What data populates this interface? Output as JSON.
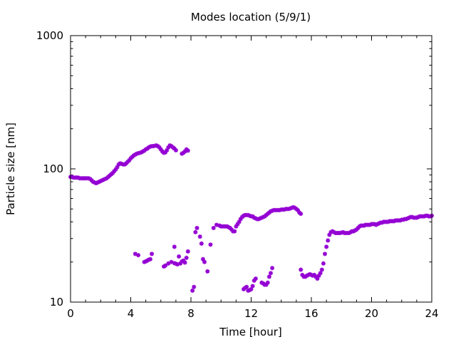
{
  "chart_data": {
    "type": "scatter",
    "title": "Modes location (5/9/1)",
    "xlabel": "Time [hour]",
    "ylabel": "Particle size [nm]",
    "xlim": [
      0,
      24
    ],
    "ylim": [
      10,
      1000
    ],
    "yscale": "log",
    "grid": false,
    "legend": "none",
    "marker": "star",
    "color": "#9400d3",
    "xticks": [
      "0",
      "4",
      "8",
      "12",
      "16",
      "20",
      "24"
    ],
    "yticks": [
      "10",
      "100",
      "1000"
    ],
    "series": [
      {
        "x": [
          0.0,
          0.1,
          0.2,
          0.3,
          0.4,
          0.5,
          0.6,
          0.7,
          0.8,
          0.9,
          1.0,
          1.1,
          1.2,
          1.3,
          1.4,
          1.5,
          1.6,
          1.7,
          1.8,
          1.9,
          2.0,
          2.1,
          2.2,
          2.3,
          2.4,
          2.5,
          2.6,
          2.7,
          2.8,
          2.9,
          3.0,
          3.1,
          3.2,
          3.3,
          3.4,
          3.5,
          3.6,
          3.7,
          3.8,
          3.9,
          4.0,
          4.1,
          4.2,
          4.3,
          4.4,
          4.5,
          4.6,
          4.7,
          4.8,
          4.9,
          5.0,
          5.1,
          5.2,
          5.3,
          5.4,
          5.5,
          5.6,
          5.7,
          5.8,
          5.9,
          6.0,
          6.1,
          6.2,
          6.3,
          6.4,
          6.5,
          6.6,
          6.7,
          6.8,
          6.9,
          7.0,
          7.4,
          7.5,
          7.6,
          7.7,
          7.8
        ],
        "y": [
          87,
          87,
          86,
          86,
          86,
          86,
          85,
          85,
          85,
          85,
          85,
          85,
          85,
          84,
          82,
          80,
          79,
          78,
          79,
          80,
          81,
          82,
          83,
          84,
          85,
          87,
          89,
          91,
          93,
          96,
          99,
          103,
          108,
          110,
          109,
          108,
          108,
          110,
          113,
          116,
          120,
          123,
          126,
          128,
          130,
          131,
          132,
          133,
          135,
          137,
          140,
          142,
          145,
          147,
          148,
          148,
          149,
          150,
          148,
          145,
          140,
          135,
          132,
          133,
          138,
          145,
          150,
          148,
          145,
          142,
          138,
          130,
          132,
          135,
          140,
          137
        ]
      },
      {
        "x": [
          4.3,
          4.5,
          4.9,
          5.0,
          5.1,
          5.2,
          5.3,
          5.4,
          6.2,
          6.3,
          6.5,
          6.7,
          6.9,
          7.0,
          7.1,
          7.3,
          7.4,
          7.5,
          7.6,
          7.7,
          7.8,
          6.9,
          7.2,
          8.1,
          8.2,
          8.3,
          8.4,
          8.6,
          8.7,
          8.8,
          8.9,
          9.1,
          9.3,
          9.5,
          9.7
        ],
        "y": [
          23,
          22.5,
          20,
          20.2,
          20.5,
          20.8,
          21,
          23,
          18.5,
          18.8,
          19.5,
          20,
          19.6,
          19.4,
          19.2,
          19.5,
          20.2,
          20.5,
          19.8,
          21.5,
          24,
          26,
          22,
          12.2,
          13,
          33.5,
          36,
          31,
          27.5,
          21,
          20,
          17,
          27,
          36,
          38
        ]
      },
      {
        "x": [
          9.9,
          10.0,
          10.1,
          10.2,
          10.3,
          10.4,
          10.5,
          10.6,
          10.7,
          10.8,
          10.9,
          11.0,
          11.1,
          11.2,
          11.3,
          11.4,
          11.5,
          11.6,
          11.7,
          11.8,
          11.9,
          12.0,
          12.1,
          12.2,
          12.3,
          12.4,
          12.5,
          12.6,
          12.7,
          12.8,
          12.9,
          13.0,
          13.1,
          13.2,
          13.3,
          13.4,
          13.5,
          13.6,
          13.7,
          13.8,
          13.9,
          14.0,
          14.1,
          14.2,
          14.3,
          14.4,
          14.5,
          14.6,
          14.7,
          14.8,
          14.9,
          15.0,
          15.1,
          15.2,
          15.3
        ],
        "y": [
          37.5,
          37,
          37,
          37,
          37,
          37,
          36.5,
          36,
          35,
          34,
          34,
          37,
          38.5,
          40,
          42,
          43.5,
          44.5,
          45,
          45,
          45,
          44.5,
          44,
          44,
          43,
          42.5,
          42,
          42,
          42.5,
          43,
          43.5,
          44,
          45,
          46,
          47,
          48,
          48.5,
          49,
          49,
          49,
          49,
          49,
          49.5,
          49.5,
          49.5,
          50,
          50,
          50,
          50.5,
          51,
          51.5,
          51,
          50,
          49,
          47,
          46
        ]
      },
      {
        "x": [
          11.5,
          11.6,
          11.7,
          11.8,
          11.9,
          12.0,
          12.1,
          12.2,
          12.3,
          12.7,
          12.8,
          12.9,
          13.0,
          13.1,
          13.2,
          13.3,
          13.4
        ],
        "y": [
          12.5,
          12.8,
          13,
          12.2,
          12.3,
          12.5,
          13.2,
          14.5,
          15,
          14,
          13.8,
          13.5,
          13.5,
          14,
          15.5,
          16.5,
          18
        ]
      },
      {
        "x": [
          15.3,
          15.4,
          15.5,
          15.6,
          15.7,
          15.8,
          15.9,
          16.0,
          16.1,
          16.2,
          16.3,
          16.4,
          16.5,
          16.6,
          16.7,
          16.8,
          16.9,
          17.0,
          17.1,
          17.2,
          17.3,
          17.4,
          17.5,
          17.6,
          17.7,
          17.8,
          17.9,
          18.0,
          18.1,
          18.2,
          18.3,
          18.4,
          18.5,
          18.6,
          18.7,
          18.8,
          18.9,
          19.0,
          19.1,
          19.2,
          19.3,
          19.4,
          19.5,
          19.6,
          19.7,
          19.8,
          19.9,
          20.0,
          20.1,
          20.2,
          20.3,
          20.4,
          20.5,
          20.6,
          20.7,
          20.8,
          20.9,
          21.0,
          21.1,
          21.2,
          21.3,
          21.4,
          21.5,
          21.6,
          21.7,
          21.8,
          21.9,
          22.0,
          22.1,
          22.2,
          22.3,
          22.4,
          22.5,
          22.6,
          22.7,
          22.8,
          22.9,
          23.0,
          23.1,
          23.2,
          23.3,
          23.4,
          23.5,
          23.6,
          23.7,
          23.8,
          23.9,
          24.0
        ],
        "y": [
          17.5,
          16,
          15.5,
          15.5,
          15.8,
          16,
          16.2,
          16,
          15.8,
          16,
          15.5,
          15,
          15.8,
          16.5,
          17.5,
          19.5,
          23,
          26,
          29,
          32,
          33.5,
          34,
          33.5,
          33,
          33,
          33,
          33,
          33.2,
          33.5,
          33,
          33,
          33,
          33,
          33.5,
          34,
          34,
          34.5,
          35,
          36,
          37,
          37.5,
          37.5,
          37.5,
          38,
          38,
          38,
          38,
          38.5,
          38.5,
          38.5,
          38,
          38.5,
          39,
          39.5,
          39.5,
          40,
          40,
          40,
          40,
          40.5,
          40.5,
          40.5,
          40.5,
          41,
          41,
          41,
          41,
          41.5,
          41.5,
          42,
          42,
          42.5,
          43,
          43.5,
          43.5,
          43,
          43,
          43,
          43.5,
          44,
          44,
          44,
          44,
          44.5,
          44.5,
          44,
          44,
          44.5
        ]
      }
    ]
  }
}
